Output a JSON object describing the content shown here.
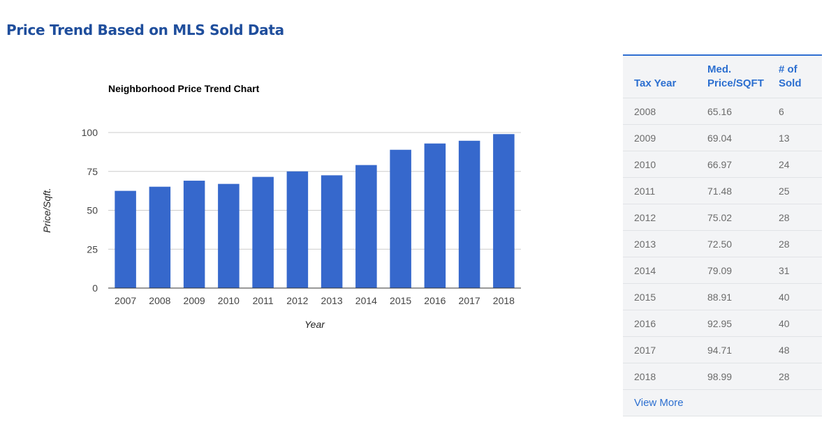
{
  "page": {
    "title": "Price Trend Based on MLS Sold Data"
  },
  "chart_data": {
    "type": "bar",
    "title": "Neighborhood Price Trend Chart",
    "xlabel": "Year",
    "ylabel": "Price/Sqft.",
    "categories": [
      "2007",
      "2008",
      "2009",
      "2010",
      "2011",
      "2012",
      "2013",
      "2014",
      "2015",
      "2016",
      "2017",
      "2018"
    ],
    "values": [
      62.5,
      65.16,
      69.04,
      66.97,
      71.48,
      75.02,
      72.5,
      79.09,
      88.91,
      92.95,
      94.71,
      98.99
    ],
    "yticks": [
      "0",
      "25",
      "50",
      "75",
      "100"
    ],
    "ylim": [
      0,
      100
    ],
    "grid": true,
    "legend": "none",
    "bar_color": "#3668cc",
    "grid_color": "#cccccc"
  },
  "table": {
    "headers": {
      "year": "Tax Year",
      "price_line1": "Med.",
      "price_line2": "Price/SQFT",
      "sold_line1": "# of",
      "sold_line2": "Sold"
    },
    "rows": [
      {
        "year": "2008",
        "price": "65.16",
        "sold": "6"
      },
      {
        "year": "2009",
        "price": "69.04",
        "sold": "13"
      },
      {
        "year": "2010",
        "price": "66.97",
        "sold": "24"
      },
      {
        "year": "2011",
        "price": "71.48",
        "sold": "25"
      },
      {
        "year": "2012",
        "price": "75.02",
        "sold": "28"
      },
      {
        "year": "2013",
        "price": "72.50",
        "sold": "28"
      },
      {
        "year": "2014",
        "price": "79.09",
        "sold": "31"
      },
      {
        "year": "2015",
        "price": "88.91",
        "sold": "40"
      },
      {
        "year": "2016",
        "price": "92.95",
        "sold": "40"
      },
      {
        "year": "2017",
        "price": "94.71",
        "sold": "48"
      },
      {
        "year": "2018",
        "price": "98.99",
        "sold": "28"
      }
    ],
    "view_more_label": "View More",
    "accent_color": "#2c6fd0"
  }
}
